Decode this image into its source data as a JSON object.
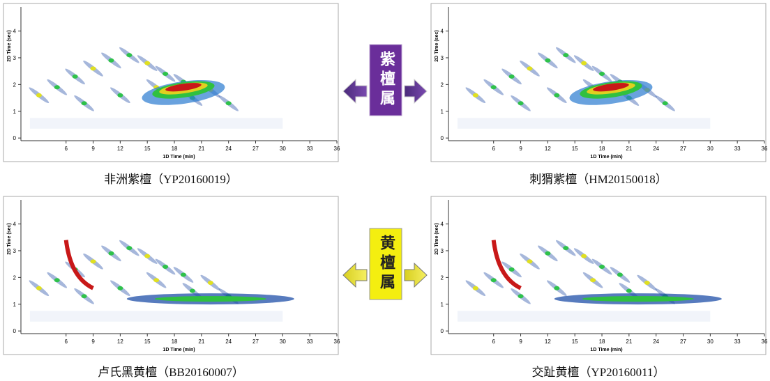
{
  "chart_data": [
    {
      "type": "contour",
      "caption": "非洲紫檀（YP20160019）",
      "xlabel": "1D Time (min)",
      "ylabel": "2D Time (sec)",
      "xlim": [
        1,
        36
      ],
      "ylim": [
        -0.1,
        4.9
      ],
      "xticks": [
        6,
        9,
        12,
        15,
        18,
        21,
        24,
        27,
        30,
        33,
        36
      ],
      "yticks": [
        0,
        1,
        2,
        3,
        4
      ]
    },
    {
      "type": "contour",
      "caption": "刺猬紫檀（HM20150018）",
      "xlabel": "1D Time (min)",
      "ylabel": "2D Time (sec)",
      "xlim": [
        1,
        36
      ],
      "ylim": [
        -0.1,
        4.9
      ],
      "xticks": [
        6,
        9,
        12,
        15,
        18,
        21,
        24,
        27,
        30,
        33,
        36
      ],
      "yticks": [
        0,
        1,
        2,
        3,
        4
      ]
    },
    {
      "type": "contour",
      "caption": "卢氏黑黄檀（BB20160007）",
      "xlabel": "1D Time (min)",
      "ylabel": "2D Time (sec)",
      "xlim": [
        1,
        36
      ],
      "ylim": [
        -0.1,
        4.9
      ],
      "xticks": [
        6,
        9,
        12,
        15,
        18,
        21,
        24,
        27,
        30,
        33,
        36
      ],
      "yticks": [
        0,
        1,
        2,
        3,
        4
      ]
    },
    {
      "type": "contour",
      "caption": "交趾黄檀（YP20160011）",
      "xlabel": "1D Time (min)",
      "ylabel": "2D Time (sec)",
      "xlim": [
        1,
        36
      ],
      "ylim": [
        -0.1,
        4.9
      ],
      "xticks": [
        6,
        9,
        12,
        15,
        18,
        21,
        24,
        27,
        30,
        33,
        36
      ],
      "yticks": [
        0,
        1,
        2,
        3,
        4
      ]
    }
  ],
  "genus_labels": [
    "紫檀属",
    "黄檀属"
  ]
}
